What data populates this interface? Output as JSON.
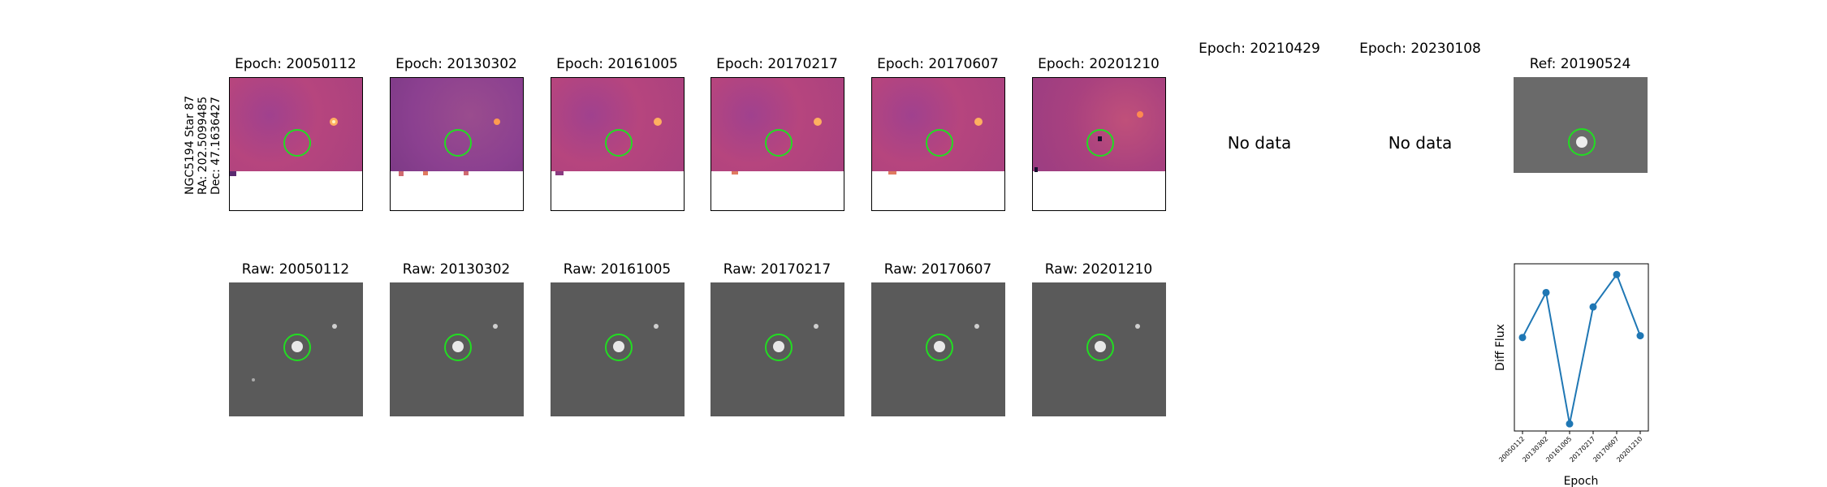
{
  "star_info": {
    "name": "NGC5194 Star 87",
    "ra": "RA: 202.5099485",
    "dec": "Dec: 47.1636427"
  },
  "diff_panels": [
    {
      "title": "Epoch: 20050112",
      "has_data": true
    },
    {
      "title": "Epoch: 20130302",
      "has_data": true
    },
    {
      "title": "Epoch: 20161005",
      "has_data": true
    },
    {
      "title": "Epoch: 20170217",
      "has_data": true
    },
    {
      "title": "Epoch: 20170607",
      "has_data": true
    },
    {
      "title": "Epoch: 20201210",
      "has_data": true
    },
    {
      "title": "Epoch: 20210429",
      "has_data": false,
      "message": "No data"
    },
    {
      "title": "Epoch: 20230108",
      "has_data": false,
      "message": "No data"
    }
  ],
  "ref_panel": {
    "title": "Ref: 20190524"
  },
  "raw_panels": [
    {
      "title": "Raw: 20050112"
    },
    {
      "title": "Raw: 20130302"
    },
    {
      "title": "Raw: 20161005"
    },
    {
      "title": "Raw: 20170217"
    },
    {
      "title": "Raw: 20170607"
    },
    {
      "title": "Raw: 20201210"
    }
  ],
  "colors": {
    "marker_circle": "#22dd22",
    "line": "#1f77b4",
    "diff_map": "#b6457e",
    "raw_bg": "#5a5a5a"
  },
  "chart_data": {
    "type": "line",
    "xlabel": "Epoch",
    "ylabel": "Diff Flux",
    "categories": [
      "20050112",
      "20130302",
      "20161005",
      "20170217",
      "20170607",
      "20201210"
    ],
    "values": [
      0.52,
      0.77,
      0.04,
      0.69,
      0.87,
      0.53
    ],
    "ylim": [
      0,
      0.93
    ],
    "grid": false,
    "y_ticks_shown": false
  }
}
